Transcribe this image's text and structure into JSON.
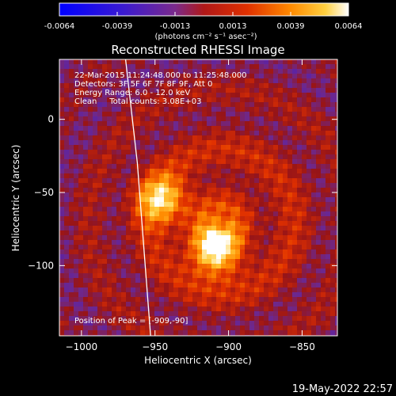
{
  "colorbar": {
    "ticks": [
      "-0.0064",
      "-0.0039",
      "-0.0013",
      "0.0013",
      "0.0039",
      "0.0064"
    ],
    "unit_label": "(photons cm⁻² s⁻¹ asec⁻²)"
  },
  "chart_data": {
    "type": "heatmap",
    "title": "Reconstructed RHESSI Image",
    "xlabel": "Heliocentric X (arcsec)",
    "ylabel": "Heliocentric Y (arcsec)",
    "xlim": [
      -1015,
      -826
    ],
    "ylim": [
      -148,
      41
    ],
    "x_ticks": [
      -1000,
      -950,
      -900,
      -850
    ],
    "y_ticks": [
      0,
      -50,
      -100
    ],
    "x_tick_labels": [
      "−1000",
      "−950",
      "−900",
      "−850"
    ],
    "y_tick_labels": [
      "0",
      "−50",
      "−100"
    ],
    "color_range": [
      -0.0064,
      0.0064
    ],
    "annotations": [
      "22-Mar-2015 11:24:48.000 to 11:25:48.000",
      "Detectors: 3F 5F 6F 7F 8F 9F, Att 0",
      "Energy Range: 6.0 - 12.0 keV",
      "Clean     Total counts: 3.08E+03"
    ],
    "peak_label": "Position of Peak = [-909,-90]",
    "sources": [
      {
        "x": -909,
        "y": -90,
        "peak": 0.0064
      },
      {
        "x": -945,
        "y": -55,
        "peak": 0.0052
      }
    ],
    "limb_points": [
      [
        -970,
        41
      ],
      [
        -962,
        -30
      ],
      [
        -953,
        -148
      ]
    ]
  },
  "timestamp": "19-May-2022 22:57"
}
